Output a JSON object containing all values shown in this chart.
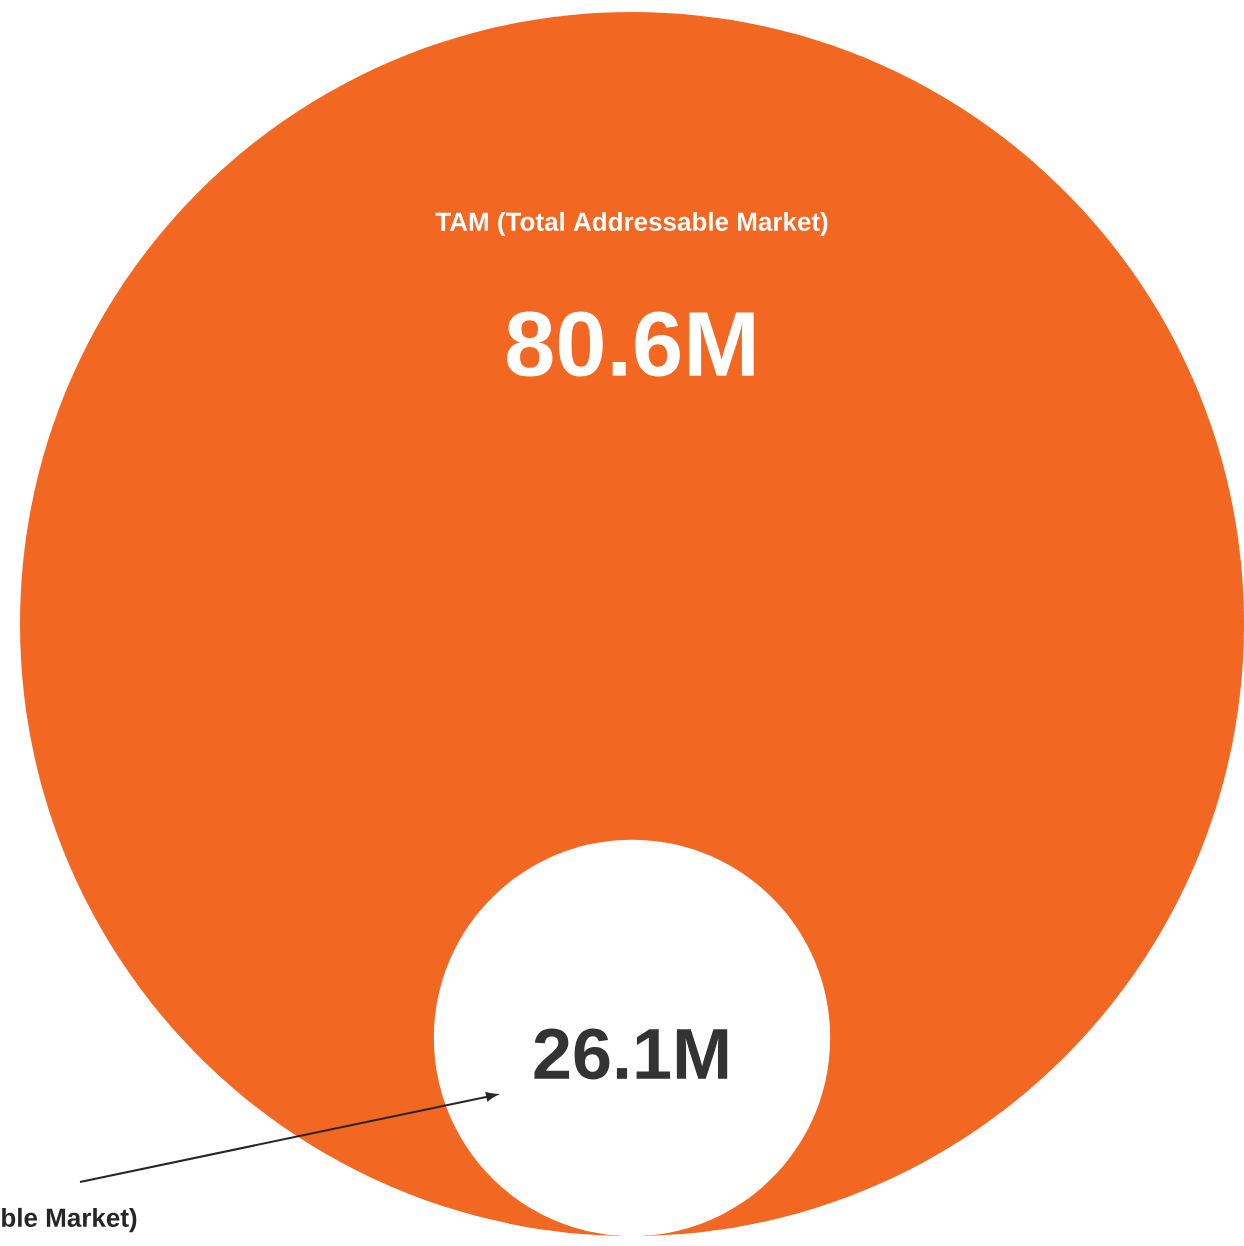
{
  "chart_data": {
    "type": "other",
    "categories": [
      "TAM (Total Addressable Market)",
      "ble Market)"
    ],
    "values": [
      80.6,
      26.1
    ],
    "value_labels": [
      "80.6M",
      "26.1M"
    ],
    "colors": [
      "#f26722",
      "#ffffff"
    ]
  }
}
